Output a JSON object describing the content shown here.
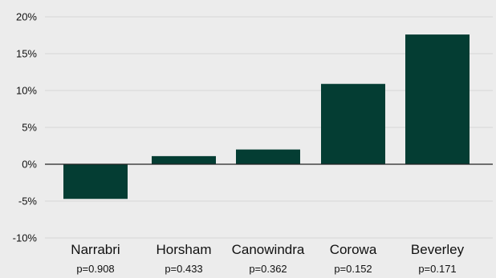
{
  "chart_data": {
    "type": "bar",
    "categories": [
      "Narrabri",
      "Horsham",
      "Canowindra",
      "Corowa",
      "Beverley"
    ],
    "values": [
      -4.7,
      1.1,
      2.0,
      10.9,
      17.6
    ],
    "annotations": [
      "p=0.908",
      "p=0.433",
      "p=0.362",
      "p=0.152",
      "p=0.171"
    ],
    "ylim": [
      -10,
      20
    ],
    "yticks": [
      -10,
      -5,
      0,
      5,
      10,
      15,
      20
    ],
    "ytick_labels": [
      "-10%",
      "-5%",
      "0%",
      "5%",
      "10%",
      "15%",
      "20%"
    ],
    "title": "",
    "xlabel": "",
    "ylabel": "",
    "grid": true,
    "colors": {
      "bar": "#043d33",
      "background": "#ececec"
    }
  }
}
